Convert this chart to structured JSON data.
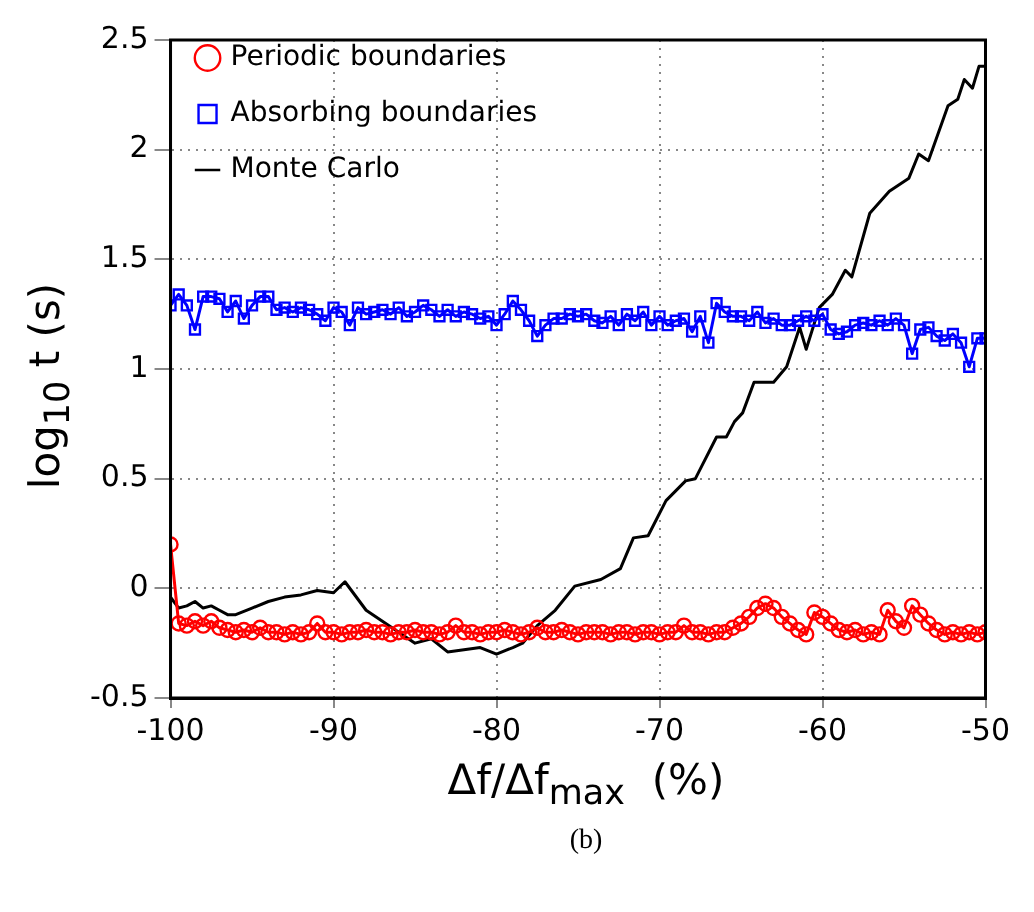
{
  "chart_data": {
    "type": "line",
    "xlabel": "Δf/Δf$_{max}$  (%)",
    "ylabel": "log$_{10}$ t (s)",
    "annotations": [
      "(b)"
    ],
    "x": [
      -100,
      -99.5,
      -99,
      -98.5,
      -98,
      -97.5,
      -97,
      -96.5,
      -96,
      -95.5,
      -95,
      -94.5,
      -94,
      -93.5,
      -93,
      -92.5,
      -92,
      -91.5,
      -91,
      -90.5,
      -90,
      -89.5,
      -89,
      -88.5,
      -88,
      -87.5,
      -87,
      -86.5,
      -86,
      -85.5,
      -85,
      -84.5,
      -84,
      -83.5,
      -83,
      -82.5,
      -82,
      -81.5,
      -81,
      -80.5,
      -80,
      -79.5,
      -79,
      -78.5,
      -78,
      -77.5,
      -77,
      -76.5,
      -76,
      -75.5,
      -75,
      -74.5,
      -74,
      -73.5,
      -73,
      -72.5,
      -72,
      -71.5,
      -71,
      -70.5,
      -70,
      -69.5,
      -69,
      -68.5,
      -68,
      -67.5,
      -67,
      -66.5,
      -66,
      -65.5,
      -65,
      -64.5,
      -64,
      -63.5,
      -63,
      -62.5,
      -62,
      -61.5,
      -61,
      -60.5,
      -60,
      -59.5,
      -59,
      -58.5,
      -58,
      -57.5,
      -57,
      -56.5,
      -56,
      -55.5,
      -55,
      -54.5,
      -54,
      -53.5,
      -53,
      -52.5,
      -52,
      -51.5,
      -51,
      -50.5,
      -50
    ],
    "series": [
      {
        "name": "Periodic boundaries",
        "color": "#ff0000",
        "marker": "circle",
        "values": [
          0.2,
          -0.16,
          -0.17,
          -0.15,
          -0.17,
          -0.15,
          -0.18,
          -0.19,
          -0.2,
          -0.19,
          -0.2,
          -0.18,
          -0.2,
          -0.2,
          -0.21,
          -0.2,
          -0.21,
          -0.2,
          -0.16,
          -0.2,
          -0.2,
          -0.21,
          -0.2,
          -0.2,
          -0.19,
          -0.2,
          -0.2,
          -0.21,
          -0.2,
          -0.2,
          -0.19,
          -0.2,
          -0.2,
          -0.21,
          -0.2,
          -0.17,
          -0.2,
          -0.2,
          -0.21,
          -0.2,
          -0.2,
          -0.19,
          -0.2,
          -0.21,
          -0.2,
          -0.18,
          -0.2,
          -0.2,
          -0.19,
          -0.2,
          -0.21,
          -0.2,
          -0.2,
          -0.2,
          -0.21,
          -0.2,
          -0.2,
          -0.21,
          -0.2,
          -0.2,
          -0.21,
          -0.2,
          -0.2,
          -0.17,
          -0.2,
          -0.2,
          -0.21,
          -0.2,
          -0.2,
          -0.18,
          -0.16,
          -0.13,
          -0.09,
          -0.07,
          -0.09,
          -0.13,
          -0.16,
          -0.19,
          -0.21,
          -0.11,
          -0.13,
          -0.16,
          -0.19,
          -0.2,
          -0.19,
          -0.21,
          -0.2,
          -0.21,
          -0.1,
          -0.15,
          -0.18,
          -0.08,
          -0.12,
          -0.16,
          -0.19,
          -0.21,
          -0.2,
          -0.21,
          -0.2,
          -0.21,
          -0.2
        ]
      },
      {
        "name": "Absorbing boundaries",
        "color": "#0000ff",
        "marker": "square",
        "values": [
          1.29,
          1.34,
          1.29,
          1.18,
          1.33,
          1.33,
          1.32,
          1.26,
          1.31,
          1.23,
          1.29,
          1.33,
          1.33,
          1.27,
          1.28,
          1.26,
          1.28,
          1.27,
          1.25,
          1.22,
          1.28,
          1.26,
          1.2,
          1.28,
          1.25,
          1.26,
          1.27,
          1.25,
          1.28,
          1.24,
          1.26,
          1.29,
          1.27,
          1.24,
          1.27,
          1.24,
          1.26,
          1.25,
          1.23,
          1.24,
          1.2,
          1.25,
          1.31,
          1.27,
          1.22,
          1.15,
          1.2,
          1.23,
          1.23,
          1.25,
          1.24,
          1.25,
          1.22,
          1.21,
          1.24,
          1.2,
          1.25,
          1.22,
          1.26,
          1.2,
          1.24,
          1.2,
          1.22,
          1.23,
          1.17,
          1.24,
          1.12,
          1.3,
          1.26,
          1.24,
          1.24,
          1.22,
          1.26,
          1.21,
          1.23,
          1.2,
          1.2,
          1.22,
          1.24,
          1.22,
          1.25,
          1.18,
          1.16,
          1.17,
          1.2,
          1.21,
          1.2,
          1.22,
          1.2,
          1.23,
          1.2,
          1.07,
          1.18,
          1.19,
          1.15,
          1.13,
          1.16,
          1.12,
          1.01,
          1.14,
          1.14
        ]
      },
      {
        "name": "Monte Carlo",
        "color": "#000000",
        "marker": "none",
        "x": [
          -100,
          -99.5,
          -99,
          -98.5,
          -98,
          -97.5,
          -97,
          -96.5,
          -96,
          -95,
          -94,
          -93,
          -92,
          -91,
          -90,
          -89.3,
          -88,
          -87,
          -86,
          -85,
          -84,
          -83,
          -82,
          -81,
          -80,
          -79,
          -78.4,
          -77.5,
          -76.4,
          -75.2,
          -73.6,
          -72.4,
          -71.6,
          -70.7,
          -69.6,
          -68.4,
          -67.8,
          -66.5,
          -65.9,
          -65.4,
          -64.9,
          -64.2,
          -63,
          -62.2,
          -61.4,
          -61,
          -60.2,
          -59.4,
          -58.6,
          -58.2,
          -57.1,
          -55.9,
          -54.7,
          -54.1,
          -53.5,
          -52.3,
          -51.7,
          -51.3,
          -50.8,
          -50.4,
          -50
        ],
        "values": [
          -0.04,
          -0.09,
          -0.08,
          -0.06,
          -0.09,
          -0.08,
          -0.1,
          -0.12,
          -0.12,
          -0.09,
          -0.06,
          -0.04,
          -0.03,
          -0.01,
          -0.02,
          0.03,
          -0.1,
          -0.15,
          -0.2,
          -0.25,
          -0.23,
          -0.29,
          -0.28,
          -0.27,
          -0.3,
          -0.27,
          -0.25,
          -0.17,
          -0.1,
          0.01,
          0.04,
          0.09,
          0.23,
          0.24,
          0.4,
          0.49,
          0.5,
          0.69,
          0.69,
          0.76,
          0.8,
          0.94,
          0.94,
          1.01,
          1.19,
          1.09,
          1.28,
          1.34,
          1.45,
          1.42,
          1.71,
          1.81,
          1.87,
          1.98,
          1.95,
          2.2,
          2.23,
          2.32,
          2.28,
          2.38,
          2.38
        ]
      }
    ],
    "xlim": [
      -100,
      -50
    ],
    "xticks": [
      -100,
      -90,
      -80,
      -70,
      -60,
      -50
    ],
    "ylim": [
      -0.5,
      2.5
    ],
    "yticks": [
      -0.5,
      0,
      0.5,
      1,
      1.5,
      2,
      2.5
    ],
    "grid": true,
    "legend": "top",
    "line_style": "solid"
  }
}
